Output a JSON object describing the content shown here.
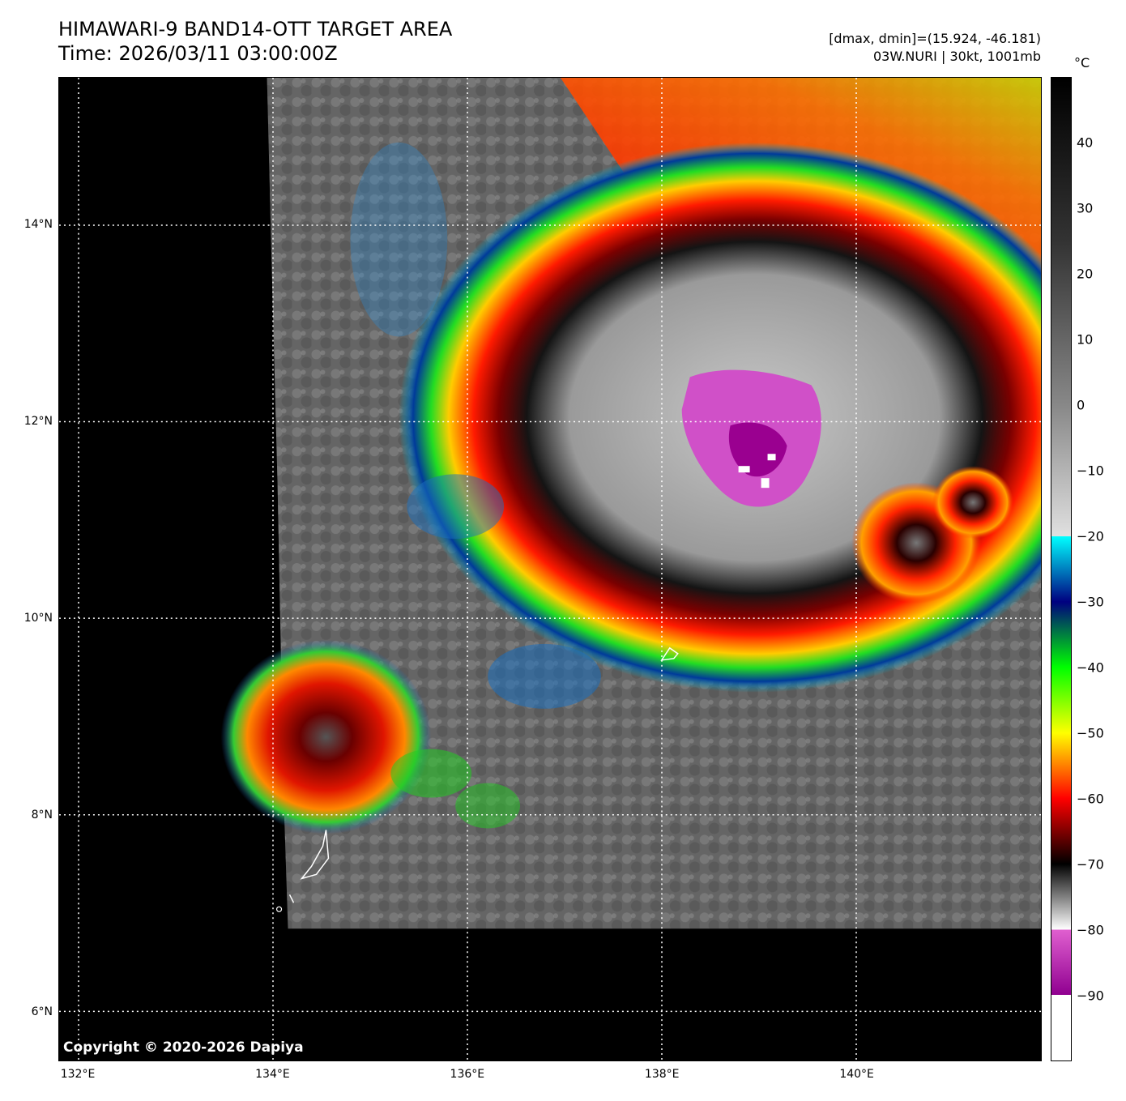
{
  "header": {
    "title": "HIMAWARI-9 BAND14-OTT TARGET AREA",
    "time": "Time: 2026/03/11 03:00:00Z",
    "dmax_dmin": "[dmax, dmin]=(15.924, -46.181)",
    "storm": "03W.NURI | 30kt, 1001mb"
  },
  "map": {
    "lon_range": [
      131.8,
      141.9
    ],
    "lat_range": [
      5.5,
      15.5
    ],
    "lat_labels": [
      {
        "value": 14,
        "text": "14°N"
      },
      {
        "value": 12,
        "text": "12°N"
      },
      {
        "value": 10,
        "text": "10°N"
      },
      {
        "value": 8,
        "text": "8°N"
      },
      {
        "value": 6,
        "text": "6°N"
      }
    ],
    "lon_labels": [
      {
        "value": 132,
        "text": "132°E"
      },
      {
        "value": 134,
        "text": "134°E"
      },
      {
        "value": 136,
        "text": "136°E"
      },
      {
        "value": 138,
        "text": "138°E"
      },
      {
        "value": 140,
        "text": "140°E"
      }
    ],
    "gridlines": "dotted-white",
    "no_data_color": "#000000",
    "copyright": "Copyright © 2020-2026 Dapiya"
  },
  "colorbar": {
    "unit": "°C",
    "range": [
      -100,
      50
    ],
    "ticks": [
      {
        "value": 40,
        "text": "40"
      },
      {
        "value": 30,
        "text": "30"
      },
      {
        "value": 20,
        "text": "20"
      },
      {
        "value": 10,
        "text": "10"
      },
      {
        "value": 0,
        "text": "0"
      },
      {
        "value": -10,
        "text": "−10"
      },
      {
        "value": -20,
        "text": "−20"
      },
      {
        "value": -30,
        "text": "−30"
      },
      {
        "value": -40,
        "text": "−40"
      },
      {
        "value": -50,
        "text": "−50"
      },
      {
        "value": -60,
        "text": "−60"
      },
      {
        "value": -70,
        "text": "−70"
      },
      {
        "value": -80,
        "text": "−80"
      },
      {
        "value": -90,
        "text": "−90"
      }
    ],
    "stops": [
      {
        "value": 50,
        "color": "#000000"
      },
      {
        "value": 25,
        "color": "#333333"
      },
      {
        "value": 0,
        "color": "#888888"
      },
      {
        "value": -20,
        "color": "#e0e0e0"
      },
      {
        "value": -20,
        "color": "#00ffff"
      },
      {
        "value": -30,
        "color": "#000080"
      },
      {
        "value": -40,
        "color": "#00ff00"
      },
      {
        "value": -50,
        "color": "#ffff00"
      },
      {
        "value": -60,
        "color": "#ff0000"
      },
      {
        "value": -70,
        "color": "#000000"
      },
      {
        "value": -80,
        "color": "#ffffff"
      },
      {
        "value": -80,
        "color": "#e060d0"
      },
      {
        "value": -90,
        "color": "#900090"
      },
      {
        "value": -90,
        "color": "#ffffff"
      },
      {
        "value": -100,
        "color": "#ffffff"
      }
    ]
  }
}
